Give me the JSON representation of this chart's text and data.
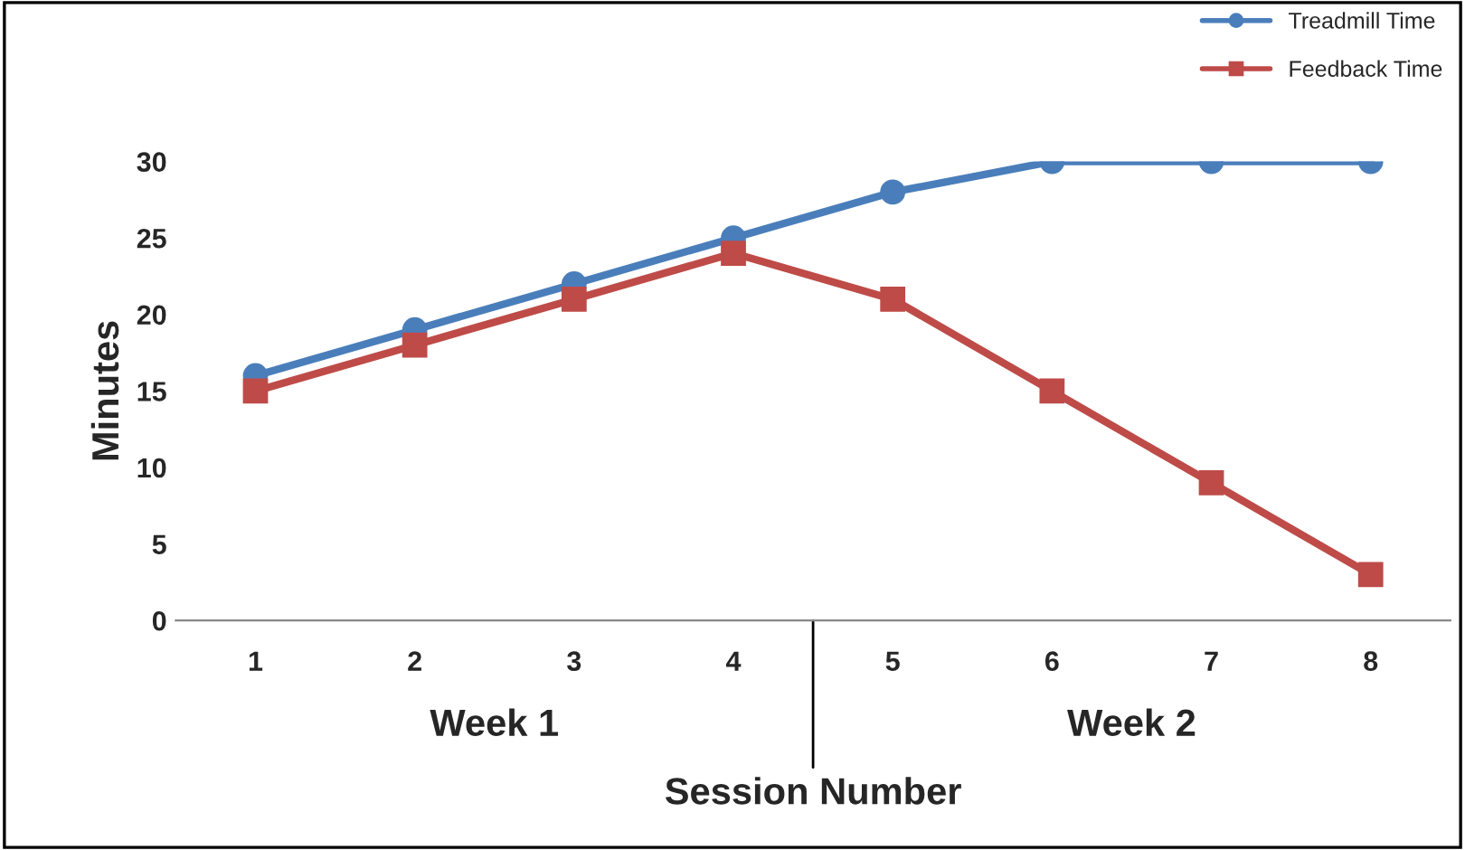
{
  "chart_data": {
    "type": "line",
    "xlabel": "Session Number",
    "ylabel": "Minutes",
    "categories": [
      "1",
      "2",
      "3",
      "4",
      "5",
      "6",
      "7",
      "8"
    ],
    "series": [
      {
        "name": "Treadmill Time",
        "color": "#4a7ebb",
        "marker": "circle",
        "values": [
          16,
          19,
          22,
          25,
          28,
          30,
          30,
          30
        ]
      },
      {
        "name": "Feedback Time",
        "color": "#be4b48",
        "marker": "square",
        "values": [
          15,
          18,
          21,
          24,
          21,
          15,
          9,
          3
        ]
      }
    ],
    "annotations": [
      "Week 1",
      "Week 2"
    ],
    "ylim": [
      0,
      30
    ],
    "yticks": [
      0,
      5,
      10,
      15,
      20,
      25,
      30
    ],
    "legend": "top right",
    "grid": false,
    "line_style": "solid"
  }
}
